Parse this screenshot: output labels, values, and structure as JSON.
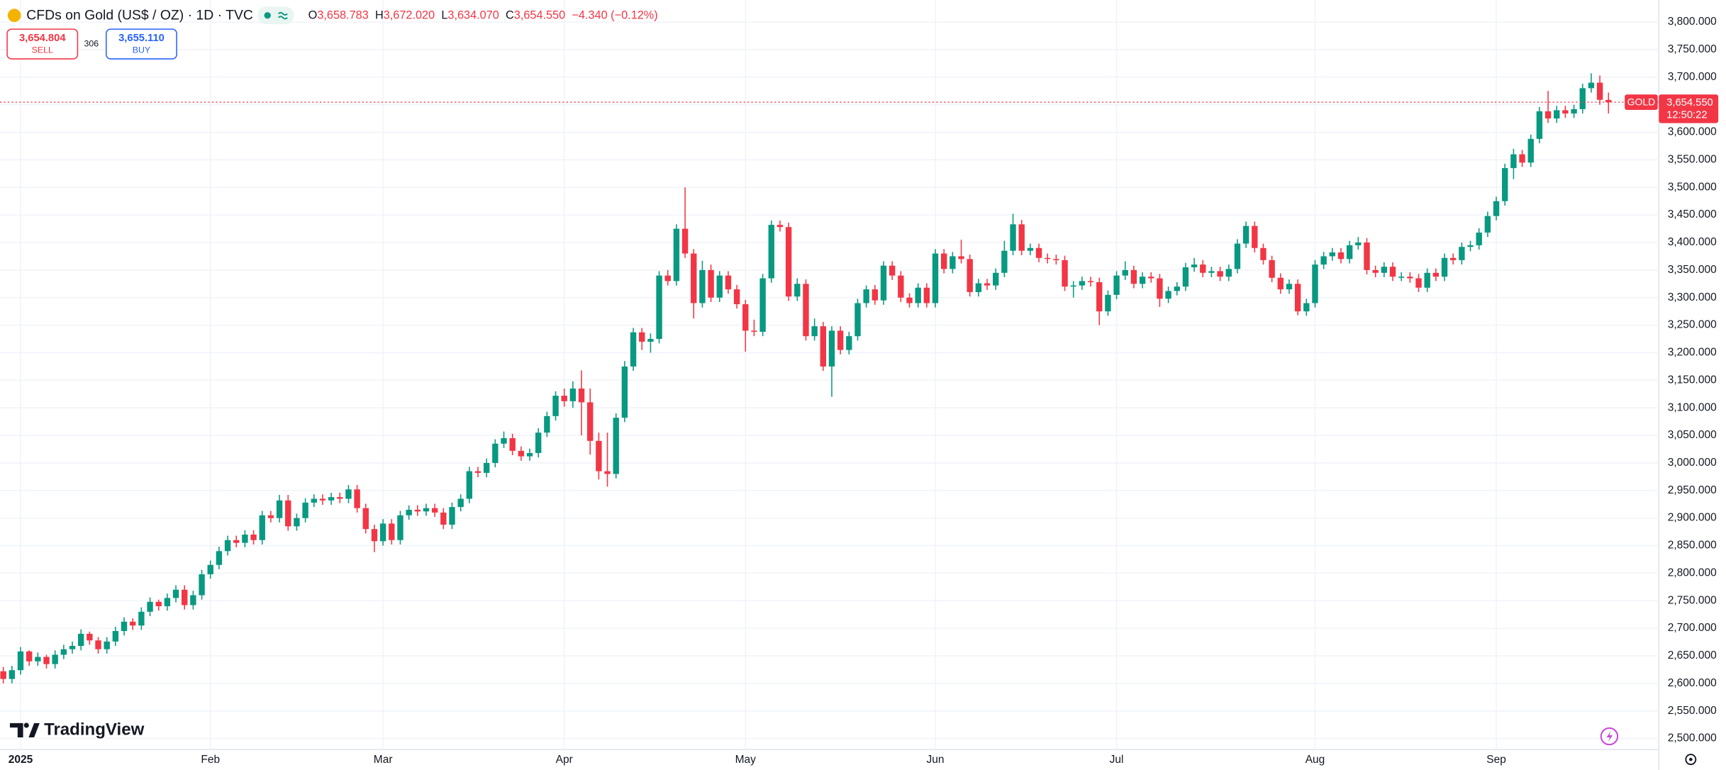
{
  "chart_data": {
    "type": "candlestick",
    "title": "CFDs on Gold (US$ / OZ) · 1D · TVC",
    "legend": {
      "open_label": "O",
      "open": "3,658.783",
      "high_label": "H",
      "high": "3,672.020",
      "low_label": "L",
      "low": "3,634.070",
      "close_label": "C",
      "close": "3,654.550",
      "change": "−4.340 (−0.12%)"
    },
    "trade": {
      "sell_price": "3,654.804",
      "sell_label": "SELL",
      "spread": "306",
      "buy_price": "3,655.110",
      "buy_label": "BUY"
    },
    "last_price_label": "3,654.550",
    "countdown": "12:50:22",
    "logo": "TradingView",
    "up_color": "#089981",
    "down_color": "#f23645",
    "grid": true,
    "categories": [
      null,
      null,
      "2025",
      null,
      null,
      null,
      null,
      null,
      null,
      null,
      null,
      null,
      null,
      null,
      null,
      null,
      null,
      null,
      null,
      null,
      null,
      null,
      null,
      null,
      "Feb",
      null,
      null,
      null,
      null,
      null,
      null,
      null,
      null,
      null,
      null,
      null,
      null,
      null,
      null,
      null,
      null,
      null,
      null,
      null,
      "Mar",
      null,
      null,
      null,
      null,
      null,
      null,
      null,
      null,
      null,
      null,
      null,
      null,
      null,
      null,
      null,
      null,
      null,
      null,
      null,
      null,
      "Apr",
      null,
      null,
      null,
      null,
      null,
      null,
      null,
      null,
      null,
      null,
      null,
      null,
      null,
      null,
      null,
      null,
      null,
      null,
      null,
      null,
      "May",
      null,
      null,
      null,
      null,
      null,
      null,
      null,
      null,
      null,
      null,
      null,
      null,
      null,
      null,
      null,
      null,
      null,
      null,
      null,
      null,
      null,
      "Jun",
      null,
      null,
      null,
      null,
      null,
      null,
      null,
      null,
      null,
      null,
      null,
      null,
      null,
      null,
      null,
      null,
      null,
      null,
      null,
      null,
      "Jul",
      null,
      null,
      null,
      null,
      null,
      null,
      null,
      null,
      null,
      null,
      null,
      null,
      null,
      null,
      null,
      null,
      null,
      null,
      null,
      null,
      null,
      null,
      "Aug",
      null,
      null,
      null,
      null,
      null,
      null,
      null,
      null,
      null,
      null,
      null,
      null,
      null,
      null,
      null,
      null,
      null,
      null,
      null,
      null,
      "Sep",
      null,
      null,
      null,
      null,
      null,
      null,
      null,
      null,
      null,
      null,
      null,
      null,
      null
    ],
    "series": [
      {
        "name": "GOLD",
        "open": [
          2622,
          2608,
          2624,
          2658,
          2640,
          2648,
          2635,
          2652,
          2662,
          2668,
          2690,
          2678,
          2662,
          2676,
          2695,
          2712,
          2705,
          2730,
          2748,
          2740,
          2755,
          2770,
          2742,
          2760,
          2798,
          2815,
          2840,
          2860,
          2855,
          2870,
          2860,
          2905,
          2900,
          2932,
          2885,
          2900,
          2928,
          2935,
          2932,
          2938,
          2935,
          2952,
          2918,
          2880,
          2858,
          2890,
          2860,
          2905,
          2915,
          2912,
          2918,
          2910,
          2888,
          2920,
          2935,
          2985,
          2982,
          3000,
          3035,
          3045,
          3022,
          3012,
          3018,
          3055,
          3085,
          3122,
          3112,
          3135,
          3110,
          3040,
          2985,
          2980,
          3082,
          3175,
          3237,
          3220,
          3225,
          3340,
          3330,
          3425,
          3380,
          3290,
          3350,
          3300,
          3340,
          3315,
          3288,
          3240,
          3238,
          3335,
          3432,
          3428,
          3302,
          3325,
          3230,
          3248,
          3175,
          3240,
          3205,
          3230,
          3290,
          3315,
          3295,
          3358,
          3340,
          3300,
          3290,
          3318,
          3290,
          3380,
          3352,
          3375,
          3370,
          3310,
          3326,
          3322,
          3345,
          3385,
          3433,
          3385,
          3390,
          3372,
          3370,
          3368,
          3320,
          3322,
          3330,
          3328,
          3275,
          3305,
          3340,
          3350,
          3325,
          3338,
          3335,
          3298,
          3312,
          3320,
          3355,
          3360,
          3345,
          3348,
          3338,
          3352,
          3398,
          3430,
          3390,
          3368,
          3336,
          3315,
          3325,
          3275,
          3290,
          3360,
          3375,
          3382,
          3370,
          3395,
          3400,
          3350,
          3345,
          3356,
          3338,
          3338,
          3335,
          3318,
          3345,
          3338,
          3372,
          3368,
          3392,
          3395,
          3418,
          3448,
          3475,
          3535,
          3560,
          3545,
          3588,
          3638,
          3625,
          3640,
          3634,
          3642,
          3680,
          3690,
          3658.783
        ],
        "high": [
          2630,
          2632,
          2666,
          2660,
          2656,
          2652,
          2660,
          2670,
          2676,
          2698,
          2694,
          2684,
          2684,
          2703,
          2720,
          2718,
          2738,
          2756,
          2752,
          2763,
          2778,
          2778,
          2768,
          2806,
          2823,
          2848,
          2868,
          2868,
          2878,
          2878,
          2913,
          2913,
          2942,
          2942,
          2908,
          2936,
          2943,
          2943,
          2946,
          2946,
          2960,
          2960,
          2926,
          2888,
          2898,
          2898,
          2913,
          2923,
          2923,
          2926,
          2926,
          2918,
          2928,
          2943,
          2993,
          2993,
          3008,
          3043,
          3057,
          3053,
          3030,
          3026,
          3063,
          3093,
          3130,
          3135,
          3148,
          3168,
          3135,
          3055,
          3055,
          3090,
          3185,
          3245,
          3245,
          3235,
          3348,
          3350,
          3433,
          3500,
          3388,
          3367,
          3360,
          3348,
          3348,
          3323,
          3296,
          3260,
          3343,
          3440,
          3440,
          3436,
          3335,
          3333,
          3262,
          3256,
          3248,
          3248,
          3238,
          3298,
          3322,
          3323,
          3366,
          3366,
          3348,
          3308,
          3326,
          3326,
          3388,
          3388,
          3383,
          3405,
          3378,
          3334,
          3334,
          3353,
          3403,
          3452,
          3441,
          3398,
          3398,
          3380,
          3378,
          3376,
          3330,
          3338,
          3338,
          3336,
          3313,
          3348,
          3366,
          3358,
          3346,
          3346,
          3343,
          3320,
          3328,
          3363,
          3372,
          3368,
          3356,
          3356,
          3360,
          3406,
          3438,
          3438,
          3398,
          3376,
          3344,
          3333,
          3333,
          3298,
          3368,
          3383,
          3390,
          3390,
          3403,
          3410,
          3408,
          3358,
          3364,
          3364,
          3346,
          3346,
          3343,
          3353,
          3353,
          3380,
          3380,
          3400,
          3403,
          3426,
          3456,
          3483,
          3543,
          3570,
          3568,
          3596,
          3646,
          3675,
          3648,
          3648,
          3650,
          3688,
          3707,
          3703,
          3672.02
        ],
        "low": [
          2600,
          2600,
          2616,
          2632,
          2632,
          2627,
          2627,
          2644,
          2654,
          2660,
          2670,
          2654,
          2654,
          2668,
          2687,
          2697,
          2697,
          2722,
          2732,
          2732,
          2747,
          2734,
          2734,
          2752,
          2790,
          2807,
          2832,
          2847,
          2847,
          2852,
          2852,
          2892,
          2892,
          2877,
          2877,
          2892,
          2920,
          2924,
          2924,
          2927,
          2927,
          2910,
          2872,
          2838,
          2850,
          2852,
          2852,
          2897,
          2904,
          2904,
          2902,
          2880,
          2880,
          2912,
          2927,
          2974,
          2974,
          2992,
          3027,
          3014,
          3004,
          3004,
          3010,
          3047,
          3077,
          3102,
          3100,
          3050,
          3015,
          2970,
          2957,
          2972,
          3074,
          3167,
          3205,
          3200,
          3217,
          3322,
          3322,
          3372,
          3262,
          3282,
          3292,
          3292,
          3307,
          3280,
          3202,
          3230,
          3230,
          3327,
          3420,
          3294,
          3294,
          3222,
          3222,
          3167,
          3120,
          3197,
          3197,
          3222,
          3282,
          3287,
          3287,
          3332,
          3292,
          3282,
          3282,
          3282,
          3282,
          3344,
          3344,
          3362,
          3302,
          3302,
          3314,
          3314,
          3337,
          3377,
          3377,
          3377,
          3364,
          3362,
          3360,
          3312,
          3300,
          3314,
          3320,
          3250,
          3267,
          3297,
          3332,
          3317,
          3317,
          3327,
          3283,
          3290,
          3304,
          3312,
          3347,
          3337,
          3337,
          3330,
          3330,
          3344,
          3390,
          3382,
          3360,
          3328,
          3307,
          3307,
          3268,
          3267,
          3282,
          3352,
          3367,
          3362,
          3362,
          3387,
          3342,
          3337,
          3337,
          3330,
          3330,
          3327,
          3310,
          3310,
          3330,
          3330,
          3360,
          3360,
          3384,
          3387,
          3410,
          3440,
          3467,
          3515,
          3537,
          3537,
          3580,
          3617,
          3617,
          3626,
          3626,
          3634,
          3672,
          3650,
          3634.07
        ],
        "close": [
          2608,
          2624,
          2658,
          2640,
          2648,
          2635,
          2652,
          2662,
          2668,
          2690,
          2678,
          2662,
          2676,
          2695,
          2712,
          2705,
          2730,
          2748,
          2740,
          2755,
          2770,
          2742,
          2760,
          2798,
          2815,
          2840,
          2860,
          2855,
          2870,
          2860,
          2905,
          2900,
          2932,
          2885,
          2900,
          2928,
          2935,
          2932,
          2938,
          2935,
          2952,
          2918,
          2880,
          2858,
          2890,
          2860,
          2905,
          2915,
          2912,
          2918,
          2910,
          2888,
          2920,
          2935,
          2985,
          2982,
          3000,
          3035,
          3045,
          3022,
          3012,
          3018,
          3055,
          3085,
          3122,
          3112,
          3135,
          3110,
          3040,
          2985,
          2980,
          3082,
          3175,
          3237,
          3220,
          3225,
          3340,
          3330,
          3425,
          3380,
          3290,
          3350,
          3300,
          3340,
          3315,
          3288,
          3240,
          3238,
          3335,
          3432,
          3428,
          3302,
          3325,
          3230,
          3248,
          3175,
          3240,
          3205,
          3230,
          3290,
          3315,
          3295,
          3358,
          3340,
          3300,
          3290,
          3318,
          3290,
          3380,
          3352,
          3375,
          3370,
          3310,
          3326,
          3322,
          3345,
          3385,
          3433,
          3385,
          3390,
          3372,
          3370,
          3368,
          3320,
          3322,
          3330,
          3328,
          3275,
          3305,
          3340,
          3350,
          3325,
          3338,
          3335,
          3298,
          3312,
          3320,
          3355,
          3360,
          3345,
          3348,
          3338,
          3352,
          3398,
          3430,
          3390,
          3368,
          3336,
          3315,
          3325,
          3275,
          3290,
          3360,
          3375,
          3382,
          3370,
          3395,
          3400,
          3350,
          3345,
          3356,
          3338,
          3338,
          3335,
          3318,
          3345,
          3338,
          3372,
          3368,
          3392,
          3395,
          3418,
          3448,
          3475,
          3535,
          3560,
          3545,
          3588,
          3638,
          3625,
          3640,
          3634,
          3642,
          3680,
          3690,
          3658.89,
          3654.55
        ]
      }
    ],
    "ylim": [
      2480,
      3840
    ],
    "yticks": [
      {
        "value": 2500,
        "label": "2,500.000"
      },
      {
        "value": 2550,
        "label": "2,550.000"
      },
      {
        "value": 2600,
        "label": "2,600.000"
      },
      {
        "value": 2650,
        "label": "2,650.000"
      },
      {
        "value": 2700,
        "label": "2,700.000"
      },
      {
        "value": 2750,
        "label": "2,750.000"
      },
      {
        "value": 2800,
        "label": "2,800.000"
      },
      {
        "value": 2850,
        "label": "2,850.000"
      },
      {
        "value": 2900,
        "label": "2,900.000"
      },
      {
        "value": 2950,
        "label": "2,950.000"
      },
      {
        "value": 3000,
        "label": "3,000.000"
      },
      {
        "value": 3050,
        "label": "3,050.000"
      },
      {
        "value": 3100,
        "label": "3,100.000"
      },
      {
        "value": 3150,
        "label": "3,150.000"
      },
      {
        "value": 3200,
        "label": "3,200.000"
      },
      {
        "value": 3250,
        "label": "3,250.000"
      },
      {
        "value": 3300,
        "label": "3,300.000"
      },
      {
        "value": 3350,
        "label": "3,350.000"
      },
      {
        "value": 3400,
        "label": "3,400.000"
      },
      {
        "value": 3450,
        "label": "3,450.000"
      },
      {
        "value": 3500,
        "label": "3,500.000"
      },
      {
        "value": 3550,
        "label": "3,550.000"
      },
      {
        "value": 3600,
        "label": "3,600.000"
      },
      {
        "value": 3650,
        "label": "3,650.000"
      },
      {
        "value": 3700,
        "label": "3,700.000"
      },
      {
        "value": 3750,
        "label": "3,750.000"
      },
      {
        "value": 3800,
        "label": "3,800.000"
      }
    ]
  }
}
